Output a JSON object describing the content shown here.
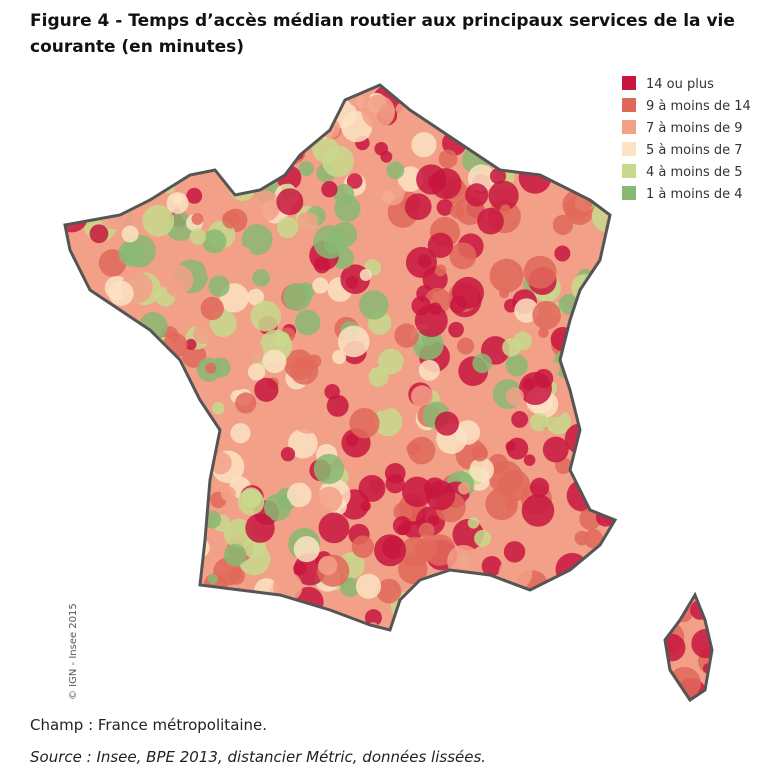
{
  "header": {
    "title": "Figure 4 - Temps d’accès médian routier aux principaux services de la vie courante (en minutes)"
  },
  "legend": {
    "items": [
      {
        "label": "14 ou plus",
        "color": "#c8163f"
      },
      {
        "label": "9 à moins de 14",
        "color": "#e0685a"
      },
      {
        "label": "7 à moins de 9",
        "color": "#f2a088"
      },
      {
        "label": "5 à moins de 7",
        "color": "#fbe3c3"
      },
      {
        "label": "4 à moins de 5",
        "color": "#c8d98c"
      },
      {
        "label": "1 à moins de 4",
        "color": "#88b872"
      }
    ]
  },
  "map": {
    "credit": "© IGN - Insee 2015"
  },
  "footer": {
    "scope": "Champ : France métropolitaine.",
    "source": "Source : Insee, BPE 2013, distancier Métric, données lissées."
  }
}
